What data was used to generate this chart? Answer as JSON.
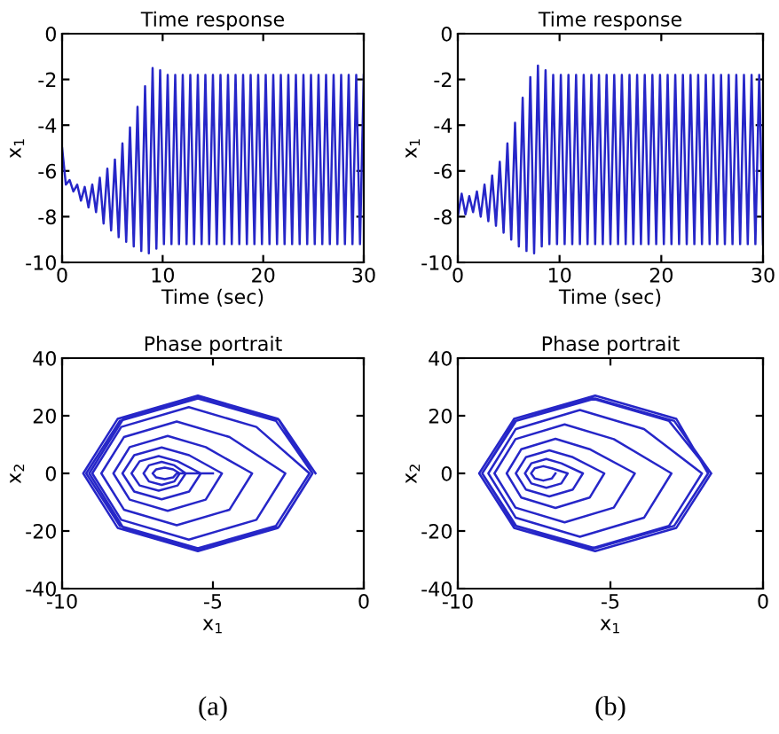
{
  "chart_data": [
    {
      "type": "line",
      "title": "Time response",
      "xlabel": "Time (sec)",
      "ylabel": "x$_{1}$",
      "xlim": [
        0,
        30
      ],
      "ylim": [
        -10,
        0
      ],
      "xticks": [
        0,
        10,
        20,
        30
      ],
      "yticks": [
        -10,
        -8,
        -6,
        -4,
        -2,
        0
      ],
      "grid": false,
      "legend": false,
      "series": [
        {
          "color": "#2626c8",
          "x": [
            0,
            0.375,
            0.75,
            1.125,
            1.5,
            1.875,
            2.25,
            2.625,
            3,
            3.375,
            3.75,
            4.125,
            4.5,
            4.875,
            5.25,
            5.625,
            6,
            6.375,
            6.75,
            7.125,
            7.5,
            7.875,
            8.25,
            8.625,
            9,
            9.375,
            9.75,
            10.125,
            10.5,
            10.875,
            11.25,
            11.625,
            12,
            12.375,
            12.75,
            13.125,
            13.5,
            13.875,
            14.25,
            14.625,
            15,
            15.375,
            15.75,
            16.125,
            16.5,
            16.875,
            17.25,
            17.625,
            18,
            18.375,
            18.75,
            19.125,
            19.5,
            19.875,
            20.25,
            20.625,
            21,
            21.375,
            21.75,
            22.125,
            22.5,
            22.875,
            23.25,
            23.625,
            24,
            24.375,
            24.75,
            25.125,
            25.5,
            25.875,
            26.25,
            26.625,
            27,
            27.375,
            27.75,
            28.125,
            28.5,
            28.875,
            29.25,
            29.625,
            30
          ],
          "values": [
            -5,
            -6.6,
            -6.4,
            -6.9,
            -6.6,
            -7.3,
            -6.7,
            -7.6,
            -6.6,
            -7.8,
            -6.3,
            -8.3,
            -5.9,
            -8.6,
            -5.5,
            -8.9,
            -4.8,
            -9.1,
            -4.1,
            -9.3,
            -3.2,
            -9.5,
            -2.3,
            -9.6,
            -1.5,
            -9.4,
            -1.6,
            -9.2,
            -1.8,
            -9.2,
            -1.8,
            -9.2,
            -1.8,
            -9.2,
            -1.8,
            -9.2,
            -1.8,
            -9.2,
            -1.8,
            -9.2,
            -1.8,
            -9.2,
            -1.8,
            -9.2,
            -1.8,
            -9.2,
            -1.8,
            -9.2,
            -1.8,
            -9.2,
            -1.8,
            -9.2,
            -1.8,
            -9.2,
            -1.8,
            -9.2,
            -1.8,
            -9.2,
            -1.8,
            -9.2,
            -1.8,
            -9.2,
            -1.8,
            -9.2,
            -1.8,
            -9.2,
            -1.8,
            -9.2,
            -1.8,
            -9.2,
            -1.8,
            -9.2,
            -1.8,
            -9.2,
            -1.8,
            -9.2,
            -1.8,
            -9.2,
            -1.8,
            -9.2,
            -1.8
          ]
        }
      ]
    },
    {
      "type": "line",
      "title": "Time response",
      "xlabel": "Time (sec)",
      "ylabel": "x$_{1}$",
      "xlim": [
        0,
        30
      ],
      "ylim": [
        -10,
        0
      ],
      "xticks": [
        0,
        10,
        20,
        30
      ],
      "yticks": [
        -10,
        -8,
        -6,
        -4,
        -2,
        0
      ],
      "grid": false,
      "legend": false,
      "series": [
        {
          "color": "#2626c8",
          "x": [
            0,
            0.375,
            0.75,
            1.125,
            1.5,
            1.875,
            2.25,
            2.625,
            3,
            3.375,
            3.75,
            4.125,
            4.5,
            4.875,
            5.25,
            5.625,
            6,
            6.375,
            6.75,
            7.125,
            7.5,
            7.875,
            8.25,
            8.625,
            9,
            9.375,
            9.75,
            10.125,
            10.5,
            10.875,
            11.25,
            11.625,
            12,
            12.375,
            12.75,
            13.125,
            13.5,
            13.875,
            14.25,
            14.625,
            15,
            15.375,
            15.75,
            16.125,
            16.5,
            16.875,
            17.25,
            17.625,
            18,
            18.375,
            18.75,
            19.125,
            19.5,
            19.875,
            20.25,
            20.625,
            21,
            21.375,
            21.75,
            22.125,
            22.5,
            22.875,
            23.25,
            23.625,
            24,
            24.375,
            24.75,
            25.125,
            25.5,
            25.875,
            26.25,
            26.625,
            27,
            27.375,
            27.75,
            28.125,
            28.5,
            28.875,
            29.25,
            29.625,
            30
          ],
          "values": [
            -8,
            -7,
            -7.9,
            -7.1,
            -7.8,
            -6.9,
            -8,
            -6.6,
            -8.2,
            -6.2,
            -8.4,
            -5.6,
            -8.7,
            -4.8,
            -9,
            -3.9,
            -9.3,
            -2.8,
            -9.5,
            -1.9,
            -9.6,
            -1.4,
            -9.3,
            -1.6,
            -9.2,
            -1.8,
            -9.2,
            -1.8,
            -9.2,
            -1.8,
            -9.2,
            -1.8,
            -9.2,
            -1.8,
            -9.2,
            -1.8,
            -9.2,
            -1.8,
            -9.2,
            -1.8,
            -9.2,
            -1.8,
            -9.2,
            -1.8,
            -9.2,
            -1.8,
            -9.2,
            -1.8,
            -9.2,
            -1.8,
            -9.2,
            -1.8,
            -9.2,
            -1.8,
            -9.2,
            -1.8,
            -9.2,
            -1.8,
            -9.2,
            -1.8,
            -9.2,
            -1.8,
            -9.2,
            -1.8,
            -9.2,
            -1.8,
            -9.2,
            -1.8,
            -9.2,
            -1.8,
            -9.2,
            -1.8,
            -9.2,
            -1.8,
            -9.2,
            -1.8,
            -9.2,
            -1.8,
            -9.2,
            -1.8,
            -9.2
          ]
        }
      ]
    },
    {
      "type": "line",
      "title": "Phase portrait",
      "xlabel": "x$_{1}$",
      "ylabel": "x$_{2}$",
      "xlim": [
        -10,
        0
      ],
      "ylim": [
        -40,
        40
      ],
      "xticks": [
        -10,
        -5,
        0
      ],
      "yticks": [
        -40,
        -20,
        0,
        20,
        40
      ],
      "grid": false,
      "legend": false,
      "annotations": [
        "(a)"
      ],
      "series": [
        {
          "color": "#2626c8",
          "x": [
            -5,
            -6.2,
            -6.32,
            -6.6,
            -6.88,
            -7.0,
            -6.88,
            -6.6,
            -6.32,
            -6.1,
            -6.28,
            -6.7,
            -7.12,
            -7.3,
            -7.12,
            -6.7,
            -6.28,
            -5.9,
            -6.17,
            -6.8,
            -7.43,
            -7.7,
            -7.43,
            -6.8,
            -6.17,
            -5.4,
            -5.79,
            -6.7,
            -7.61,
            -8.0,
            -7.61,
            -6.7,
            -5.79,
            -4.7,
            -5.24,
            -6.5,
            -7.76,
            -8.3,
            -7.76,
            -6.5,
            -5.24,
            -3.7,
            -4.45,
            -6.2,
            -7.95,
            -8.7,
            -7.95,
            -6.2,
            -4.45,
            -2.6,
            -3.56,
            -5.8,
            -8.04,
            -9.0,
            -8.04,
            -5.8,
            -3.56,
            -1.8,
            -2.91,
            -5.5,
            -8.09,
            -9.2,
            -8.09,
            -5.5,
            -2.91,
            -1.7,
            -2.84,
            -5.5,
            -8.16,
            -9.3,
            -8.16,
            -5.5,
            -2.84,
            -1.7,
            -2.81,
            -5.4,
            -7.99,
            -9.1,
            -7.99,
            -5.4,
            -2.81,
            -1.6
          ],
          "values": [
            0,
            0,
            -1.4,
            -2,
            -1.4,
            0,
            1.4,
            2,
            1.4,
            0,
            -2.8,
            -4,
            -2.8,
            0,
            2.8,
            4,
            2.8,
            0,
            -4.2,
            -6,
            -4.2,
            0,
            4.2,
            6,
            4.2,
            0,
            -6.3,
            -9,
            -6.3,
            0,
            6.3,
            9,
            6.3,
            0,
            -9.1,
            -13,
            -9.1,
            0,
            9.1,
            13,
            9.1,
            0,
            -12.6,
            -18,
            -12.6,
            0,
            12.6,
            18,
            12.6,
            0,
            -16.1,
            -23,
            -16.1,
            0,
            16.1,
            23,
            16.1,
            0,
            -18.2,
            -26,
            -18.2,
            0,
            18.2,
            26,
            18.2,
            0,
            -18.9,
            -27,
            -18.9,
            0,
            18.9,
            27,
            18.9,
            0,
            -18.6,
            -26.5,
            -18.6,
            0,
            18.6,
            26.5,
            18.6,
            0
          ]
        }
      ]
    },
    {
      "type": "line",
      "title": "Phase portrait",
      "xlabel": "x$_{1}$",
      "ylabel": "x$_{2}$",
      "xlim": [
        -10,
        0
      ],
      "ylim": [
        -40,
        40
      ],
      "xticks": [
        -10,
        -5,
        0
      ],
      "yticks": [
        -40,
        -20,
        0,
        20,
        40
      ],
      "grid": false,
      "legend": false,
      "annotations": [
        "(b)"
      ],
      "series": [
        {
          "color": "#2626c8",
          "x": [
            -6.8,
            -6.92,
            -7.2,
            -7.48,
            -7.6,
            -7.48,
            -7.2,
            -6.92,
            -6.4,
            -6.61,
            -7.1,
            -7.59,
            -7.8,
            -7.59,
            -7.1,
            -6.61,
            -5.9,
            -6.23,
            -7.0,
            -7.77,
            -8.1,
            -7.77,
            -7.0,
            -6.23,
            -5.2,
            -5.68,
            -6.8,
            -7.92,
            -8.4,
            -7.92,
            -6.8,
            -5.68,
            -4.2,
            -4.89,
            -6.5,
            -8.11,
            -8.8,
            -8.11,
            -6.5,
            -4.89,
            -3.0,
            -3.9,
            -6.0,
            -8.1,
            -9.0,
            -8.1,
            -6.0,
            -3.9,
            -2.0,
            -3.08,
            -5.6,
            -8.12,
            -9.2,
            -8.12,
            -5.6,
            -3.08,
            -1.7,
            -2.84,
            -5.5,
            -8.16,
            -9.3,
            -8.16,
            -5.5,
            -2.84,
            -1.8,
            -2.91,
            -5.5,
            -8.09,
            -9.2,
            -8.09,
            -5.5,
            -2.91,
            -1.7
          ],
          "values": [
            0,
            -1.75,
            -2.5,
            -1.75,
            0,
            1.75,
            2.5,
            1.75,
            0,
            -3.5,
            -5,
            -3.5,
            0,
            3.5,
            5,
            3.5,
            0,
            -5.6,
            -8,
            -5.6,
            0,
            5.6,
            8,
            5.6,
            0,
            -8.4,
            -12,
            -8.4,
            0,
            8.4,
            12,
            8.4,
            0,
            -11.9,
            -17,
            -11.9,
            0,
            11.9,
            17,
            11.9,
            0,
            -15.4,
            -22,
            -15.4,
            0,
            15.4,
            22,
            15.4,
            0,
            -18.2,
            -26,
            -18.2,
            0,
            18.2,
            26,
            18.2,
            0,
            -18.9,
            -27,
            -18.9,
            0,
            18.9,
            27,
            18.9,
            0,
            -18.2,
            -26,
            -18.2,
            0,
            18.2,
            26,
            18.2,
            0
          ]
        }
      ]
    }
  ]
}
